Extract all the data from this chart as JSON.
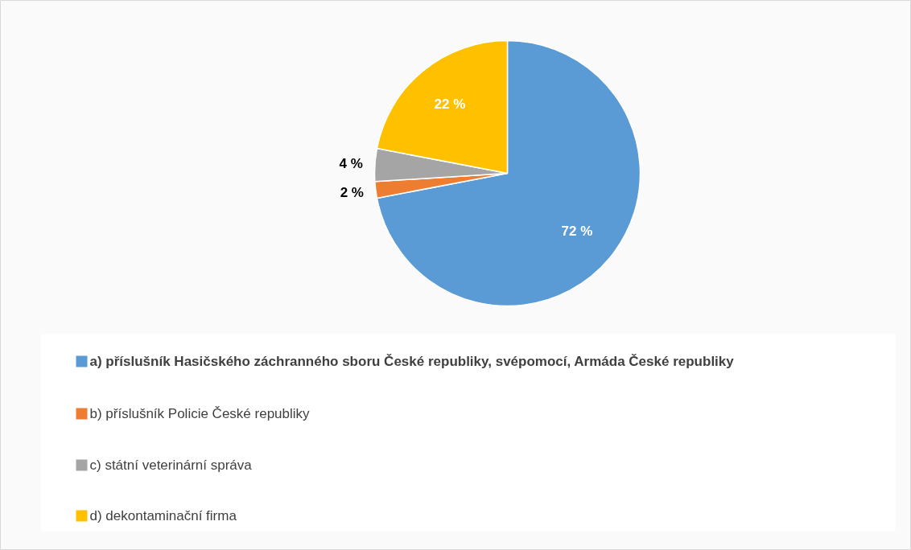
{
  "chart_data": {
    "type": "pie",
    "categories": [
      "a) příslušník Hasičského záchranného sboru České republiky, svépomocí, Armáda České republiky",
      "b) příslušník Policie České republiky",
      "c) státní veterinární správa",
      "d) dekontaminační firma"
    ],
    "values": [
      72,
      2,
      4,
      22
    ],
    "colors": [
      "#5b9bd5",
      "#ed7d31",
      "#a5a5a5",
      "#ffc000"
    ],
    "value_labels": [
      "72 %",
      "2 %",
      "4 %",
      "22 %"
    ],
    "legend": "bottom"
  }
}
